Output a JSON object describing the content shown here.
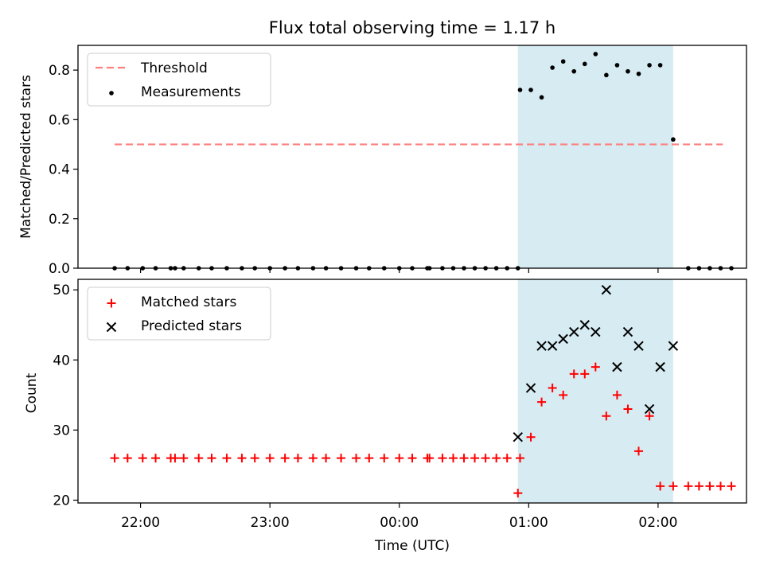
{
  "chart_data": [
    {
      "type": "scatter",
      "title": "Flux total observing time = 1.17 h",
      "ylabel": "Matched/Predicted stars",
      "xlim": [
        "21:31",
        "02:41"
      ],
      "ylim": [
        0,
        0.9
      ],
      "yticks": [
        0.0,
        0.2,
        0.4,
        0.6,
        0.8
      ],
      "ytick_labels": [
        "0.0",
        "0.2",
        "0.4",
        "0.6",
        "0.8"
      ],
      "shaded_span": [
        "00:55",
        "02:07"
      ],
      "legend_position": "top-left",
      "series": [
        {
          "name": "Threshold",
          "style": "dashed-line",
          "color": "#ff7f7f",
          "x": [
            "21:48",
            "02:30"
          ],
          "y": [
            0.5,
            0.5
          ]
        },
        {
          "name": "Measurements",
          "style": "dot",
          "color": "#000000",
          "x": [
            "21:48",
            "21:54",
            "22:01",
            "22:07",
            "22:14",
            "22:16",
            "22:20",
            "22:27",
            "22:33",
            "22:40",
            "22:47",
            "22:53",
            "23:00",
            "23:07",
            "23:13",
            "23:20",
            "23:26",
            "23:33",
            "23:40",
            "23:46",
            "23:53",
            "00:00",
            "00:06",
            "00:13",
            "00:14",
            "00:20",
            "00:25",
            "00:30",
            "00:35",
            "00:40",
            "00:45",
            "00:50",
            "00:55",
            "00:56",
            "01:01",
            "01:06",
            "01:11",
            "01:16",
            "01:21",
            "01:26",
            "01:31",
            "01:36",
            "01:41",
            "01:46",
            "01:51",
            "01:56",
            "02:01",
            "02:07",
            "02:14",
            "02:19",
            "02:24",
            "02:29",
            "02:34"
          ],
          "y": [
            0,
            0,
            0,
            0,
            0,
            0,
            0,
            0,
            0,
            0,
            0,
            0,
            0,
            0,
            0,
            0,
            0,
            0,
            0,
            0,
            0,
            0,
            0,
            0,
            0,
            0,
            0,
            0,
            0,
            0,
            0,
            0,
            0,
            0.72,
            0.72,
            0.69,
            0.81,
            0.835,
            0.795,
            0.825,
            0.865,
            0.78,
            0.82,
            0.795,
            0.785,
            0.82,
            0.82,
            0.52,
            0,
            0,
            0,
            0,
            0
          ]
        }
      ]
    },
    {
      "type": "scatter",
      "xlabel": "Time (UTC)",
      "ylabel": "Count",
      "xlim": [
        "21:31",
        "02:41"
      ],
      "ylim": [
        19.6,
        51.5
      ],
      "yticks": [
        20,
        30,
        40,
        50
      ],
      "ytick_labels": [
        "20",
        "30",
        "40",
        "50"
      ],
      "xtick_labels": [
        "22:00",
        "23:00",
        "00:00",
        "01:00",
        "02:00"
      ],
      "shaded_span": [
        "00:55",
        "02:07"
      ],
      "legend_position": "top-left",
      "series": [
        {
          "name": "Matched stars",
          "marker": "plus",
          "color": "#ff0000",
          "x": [
            "21:48",
            "21:54",
            "22:01",
            "22:07",
            "22:14",
            "22:16",
            "22:20",
            "22:27",
            "22:33",
            "22:40",
            "22:47",
            "22:53",
            "23:00",
            "23:07",
            "23:13",
            "23:20",
            "23:26",
            "23:33",
            "23:40",
            "23:46",
            "23:53",
            "00:00",
            "00:06",
            "00:13",
            "00:14",
            "00:20",
            "00:25",
            "00:30",
            "00:35",
            "00:40",
            "00:45",
            "00:50",
            "00:55",
            "00:56",
            "01:01",
            "01:06",
            "01:11",
            "01:16",
            "01:21",
            "01:26",
            "01:31",
            "01:36",
            "01:41",
            "01:46",
            "01:51",
            "01:56",
            "02:01",
            "02:07",
            "02:14",
            "02:19",
            "02:24",
            "02:29",
            "02:34"
          ],
          "y": [
            26,
            26,
            26,
            26,
            26,
            26,
            26,
            26,
            26,
            26,
            26,
            26,
            26,
            26,
            26,
            26,
            26,
            26,
            26,
            26,
            26,
            26,
            26,
            26,
            26,
            26,
            26,
            26,
            26,
            26,
            26,
            26,
            21,
            26,
            29,
            34,
            36,
            35,
            38,
            38,
            39,
            32,
            35,
            33,
            27,
            32,
            22,
            22,
            22,
            22,
            22,
            22,
            22
          ]
        },
        {
          "name": "Predicted stars",
          "marker": "x",
          "color": "#000000",
          "x": [
            "00:55",
            "01:01",
            "01:06",
            "01:11",
            "01:16",
            "01:21",
            "01:26",
            "01:31",
            "01:36",
            "01:41",
            "01:46",
            "01:51",
            "01:56",
            "02:01",
            "02:07"
          ],
          "y": [
            29,
            36,
            42,
            42,
            43,
            44,
            45,
            44,
            50,
            39,
            44,
            42,
            33,
            39,
            42
          ]
        }
      ]
    }
  ]
}
